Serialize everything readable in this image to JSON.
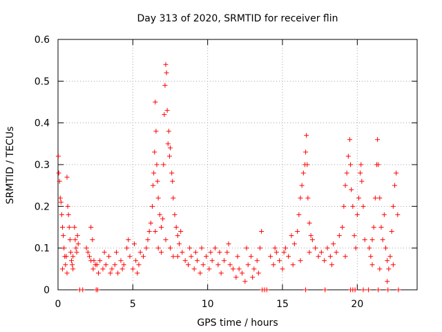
{
  "chart_data": {
    "type": "scatter",
    "title": "Day 313 of 2020, SRMTID for receiver flin",
    "xlabel": "GPS time / hours",
    "ylabel": "SRMTID / TECUs",
    "xlim": [
      0,
      24
    ],
    "ylim": [
      0,
      0.6
    ],
    "xticks": [
      0,
      5,
      10,
      15,
      20
    ],
    "xtick_labels": [
      "0",
      "5",
      "10",
      "15",
      "20"
    ],
    "yticks": [
      0,
      0.1,
      0.2,
      0.3,
      0.4,
      0.5,
      0.6
    ],
    "ytick_labels": [
      "0",
      "0.1",
      "0.2",
      "0.3",
      "0.4",
      "0.5",
      "0.6"
    ],
    "grid": true,
    "marker": "+",
    "series_color": "#ff0000",
    "series": [
      {
        "name": "SRMTID",
        "points": [
          [
            0.02,
            0.32
          ],
          [
            0.05,
            0.28
          ],
          [
            0.1,
            0.26
          ],
          [
            0.15,
            0.22
          ],
          [
            0.2,
            0.21
          ],
          [
            0.25,
            0.18
          ],
          [
            0.3,
            0.15
          ],
          [
            0.35,
            0.13
          ],
          [
            0.4,
            0.1
          ],
          [
            0.45,
            0.08
          ],
          [
            0.5,
            0.06
          ],
          [
            0.55,
            0.08
          ],
          [
            0.6,
            0.27
          ],
          [
            0.65,
            0.2
          ],
          [
            0.7,
            0.18
          ],
          [
            0.75,
            0.15
          ],
          [
            0.8,
            0.12
          ],
          [
            0.85,
            0.09
          ],
          [
            0.9,
            0.07
          ],
          [
            0.95,
            0.06
          ],
          [
            1.0,
            0.08
          ],
          [
            1.1,
            0.15
          ],
          [
            1.15,
            0.12
          ],
          [
            1.2,
            0.1
          ],
          [
            1.25,
            0.09
          ],
          [
            1.3,
            0.13
          ],
          [
            1.35,
            0.11
          ],
          [
            1.0,
            0.05
          ],
          [
            0.3,
            0.05
          ],
          [
            0.6,
            0.04
          ],
          [
            1.9,
            0.1
          ],
          [
            2.0,
            0.09
          ],
          [
            2.1,
            0.08
          ],
          [
            2.2,
            0.15
          ],
          [
            2.3,
            0.12
          ],
          [
            2.4,
            0.07
          ],
          [
            2.5,
            0.06
          ],
          [
            2.2,
            0.07
          ],
          [
            2.35,
            0.05
          ],
          [
            2.6,
            0.06
          ],
          [
            2.8,
            0.07
          ],
          [
            3.0,
            0.05
          ],
          [
            3.2,
            0.06
          ],
          [
            3.4,
            0.08
          ],
          [
            3.6,
            0.05
          ],
          [
            3.8,
            0.06
          ],
          [
            4.0,
            0.04
          ],
          [
            4.2,
            0.07
          ],
          [
            4.4,
            0.06
          ],
          [
            4.6,
            0.1
          ],
          [
            4.8,
            0.08
          ],
          [
            5.0,
            0.05
          ],
          [
            5.2,
            0.07
          ],
          [
            5.4,
            0.06
          ],
          [
            5.5,
            0.09
          ],
          [
            5.7,
            0.08
          ],
          [
            3.1,
            0.09
          ],
          [
            3.5,
            0.04
          ],
          [
            3.9,
            0.09
          ],
          [
            4.3,
            0.05
          ],
          [
            4.7,
            0.12
          ],
          [
            5.1,
            0.11
          ],
          [
            5.3,
            0.04
          ],
          [
            2.7,
            0.04
          ],
          [
            5.9,
            0.1
          ],
          [
            6.0,
            0.12
          ],
          [
            6.1,
            0.14
          ],
          [
            6.2,
            0.16
          ],
          [
            6.3,
            0.2
          ],
          [
            6.35,
            0.25
          ],
          [
            6.4,
            0.28
          ],
          [
            6.45,
            0.33
          ],
          [
            6.5,
            0.45
          ],
          [
            6.55,
            0.38
          ],
          [
            6.6,
            0.3
          ],
          [
            6.65,
            0.26
          ],
          [
            6.7,
            0.22
          ],
          [
            6.8,
            0.18
          ],
          [
            6.9,
            0.15
          ],
          [
            7.0,
            0.17
          ],
          [
            7.05,
            0.3
          ],
          [
            7.1,
            0.42
          ],
          [
            7.15,
            0.49
          ],
          [
            7.2,
            0.54
          ],
          [
            7.25,
            0.52
          ],
          [
            7.3,
            0.43
          ],
          [
            7.35,
            0.35
          ],
          [
            7.4,
            0.38
          ],
          [
            7.45,
            0.32
          ],
          [
            7.5,
            0.34
          ],
          [
            7.6,
            0.28
          ],
          [
            7.65,
            0.26
          ],
          [
            7.7,
            0.22
          ],
          [
            7.8,
            0.18
          ],
          [
            7.9,
            0.15
          ],
          [
            8.0,
            0.13
          ],
          [
            8.1,
            0.11
          ],
          [
            8.2,
            0.14
          ],
          [
            8.3,
            0.09
          ],
          [
            6.7,
            0.1
          ],
          [
            6.9,
            0.09
          ],
          [
            7.2,
            0.12
          ],
          [
            7.5,
            0.1
          ],
          [
            7.7,
            0.08
          ],
          [
            8.0,
            0.08
          ],
          [
            6.5,
            0.14
          ],
          [
            8.5,
            0.07
          ],
          [
            8.7,
            0.06
          ],
          [
            8.9,
            0.08
          ],
          [
            9.1,
            0.05
          ],
          [
            9.3,
            0.07
          ],
          [
            9.5,
            0.04
          ],
          [
            9.7,
            0.06
          ],
          [
            9.9,
            0.08
          ],
          [
            10.1,
            0.05
          ],
          [
            10.3,
            0.07
          ],
          [
            10.5,
            0.1
          ],
          [
            10.7,
            0.06
          ],
          [
            10.9,
            0.04
          ],
          [
            11.1,
            0.07
          ],
          [
            11.3,
            0.09
          ],
          [
            11.5,
            0.06
          ],
          [
            11.7,
            0.05
          ],
          [
            11.9,
            0.03
          ],
          [
            12.1,
            0.05
          ],
          [
            12.3,
            0.04
          ],
          [
            12.5,
            0.02
          ],
          [
            12.7,
            0.06
          ],
          [
            12.9,
            0.08
          ],
          [
            13.1,
            0.05
          ],
          [
            13.3,
            0.07
          ],
          [
            13.5,
            0.1
          ],
          [
            13.6,
            0.14
          ],
          [
            13.4,
            0.04
          ],
          [
            8.8,
            0.1
          ],
          [
            9.2,
            0.09
          ],
          [
            9.6,
            0.1
          ],
          [
            10.2,
            0.09
          ],
          [
            10.8,
            0.09
          ],
          [
            11.4,
            0.11
          ],
          [
            12.0,
            0.08
          ],
          [
            12.6,
            0.1
          ],
          [
            13.0,
            0.03
          ],
          [
            14.2,
            0.08
          ],
          [
            14.4,
            0.06
          ],
          [
            14.6,
            0.09
          ],
          [
            14.8,
            0.07
          ],
          [
            15.0,
            0.05
          ],
          [
            15.2,
            0.1
          ],
          [
            15.4,
            0.08
          ],
          [
            15.6,
            0.13
          ],
          [
            15.8,
            0.11
          ],
          [
            16.0,
            0.14
          ],
          [
            16.1,
            0.18
          ],
          [
            16.2,
            0.22
          ],
          [
            16.3,
            0.25
          ],
          [
            16.4,
            0.28
          ],
          [
            16.5,
            0.3
          ],
          [
            16.55,
            0.33
          ],
          [
            16.6,
            0.37
          ],
          [
            16.65,
            0.3
          ],
          [
            16.7,
            0.22
          ],
          [
            16.8,
            0.16
          ],
          [
            16.9,
            0.13
          ],
          [
            17.0,
            0.12
          ],
          [
            17.2,
            0.1
          ],
          [
            17.4,
            0.08
          ],
          [
            14.5,
            0.1
          ],
          [
            15.1,
            0.09
          ],
          [
            15.7,
            0.06
          ],
          [
            16.2,
            0.07
          ],
          [
            16.8,
            0.09
          ],
          [
            17.6,
            0.09
          ],
          [
            17.8,
            0.07
          ],
          [
            18.0,
            0.1
          ],
          [
            18.2,
            0.08
          ],
          [
            18.4,
            0.11
          ],
          [
            18.6,
            0.09
          ],
          [
            18.8,
            0.13
          ],
          [
            19.0,
            0.15
          ],
          [
            19.1,
            0.2
          ],
          [
            19.2,
            0.25
          ],
          [
            19.3,
            0.28
          ],
          [
            19.4,
            0.32
          ],
          [
            19.5,
            0.36
          ],
          [
            19.55,
            0.3
          ],
          [
            19.6,
            0.24
          ],
          [
            19.7,
            0.2
          ],
          [
            19.8,
            0.13
          ],
          [
            19.9,
            0.1
          ],
          [
            20.0,
            0.18
          ],
          [
            20.1,
            0.22
          ],
          [
            20.2,
            0.28
          ],
          [
            20.25,
            0.3
          ],
          [
            20.3,
            0.26
          ],
          [
            20.4,
            0.2
          ],
          [
            20.5,
            0.12
          ],
          [
            18.3,
            0.06
          ],
          [
            19.2,
            0.08
          ],
          [
            20.8,
            0.1
          ],
          [
            20.9,
            0.08
          ],
          [
            21.0,
            0.12
          ],
          [
            21.1,
            0.15
          ],
          [
            21.2,
            0.22
          ],
          [
            21.3,
            0.3
          ],
          [
            21.35,
            0.36
          ],
          [
            21.4,
            0.3
          ],
          [
            21.5,
            0.22
          ],
          [
            21.6,
            0.15
          ],
          [
            21.7,
            0.12
          ],
          [
            21.8,
            0.18
          ],
          [
            21.9,
            0.1
          ],
          [
            22.0,
            0.07
          ],
          [
            22.1,
            0.05
          ],
          [
            22.0,
            0.02
          ],
          [
            22.2,
            0.08
          ],
          [
            22.3,
            0.14
          ],
          [
            22.4,
            0.2
          ],
          [
            22.5,
            0.25
          ],
          [
            22.6,
            0.28
          ],
          [
            22.7,
            0.18
          ],
          [
            21.0,
            0.06
          ],
          [
            21.5,
            0.05
          ],
          [
            22.4,
            0.06
          ],
          [
            1.45,
            0
          ],
          [
            1.65,
            0
          ],
          [
            2.55,
            0
          ],
          [
            2.65,
            0
          ],
          [
            13.65,
            0
          ],
          [
            13.8,
            0
          ],
          [
            13.95,
            0
          ],
          [
            16.55,
            0
          ],
          [
            17.85,
            0
          ],
          [
            19.55,
            0
          ],
          [
            19.7,
            0
          ],
          [
            19.85,
            0
          ],
          [
            20.4,
            0
          ],
          [
            20.75,
            0
          ],
          [
            21.4,
            0
          ],
          [
            22.05,
            0
          ],
          [
            22.75,
            0
          ]
        ]
      }
    ]
  }
}
